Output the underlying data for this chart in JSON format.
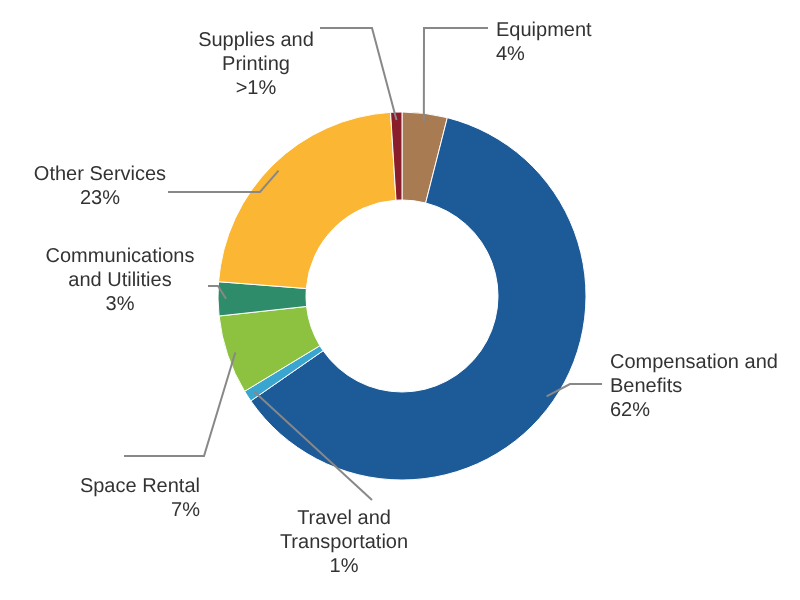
{
  "chart_data": {
    "type": "donut",
    "categories": [
      "Equipment",
      "Compensation and Benefits",
      "Travel and Transportation",
      "Space Rental",
      "Communications and Utilities",
      "Other Services",
      "Supplies and Printing"
    ],
    "values": [
      4,
      62,
      1,
      7,
      3,
      23,
      1
    ],
    "value_labels": [
      "4%",
      "62%",
      "1%",
      "7%",
      "3%",
      "23%",
      ">1%"
    ],
    "colors": [
      "#a87b52",
      "#1d5a98",
      "#3aa6cf",
      "#8cc23f",
      "#2e8c6a",
      "#fbb733",
      "#8a1d2c"
    ]
  }
}
